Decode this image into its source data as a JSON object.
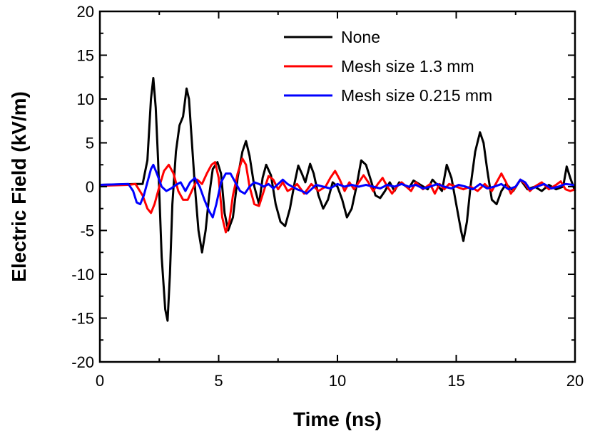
{
  "chart_data": {
    "type": "line",
    "xlabel": "Time (ns)",
    "ylabel": "Electric Field (kV/m)",
    "xlim": [
      0,
      20
    ],
    "ylim": [
      -20,
      20
    ],
    "xticks": [
      0,
      5,
      10,
      15,
      20
    ],
    "yticks": [
      -20,
      -15,
      -10,
      -5,
      0,
      5,
      10,
      15,
      20
    ],
    "grid": false,
    "legend_position": "top-right",
    "series": [
      {
        "name": "None",
        "color": "#000000",
        "points": [
          [
            0,
            0.2
          ],
          [
            1.5,
            0.3
          ],
          [
            1.8,
            0.3
          ],
          [
            2.0,
            3
          ],
          [
            2.15,
            10
          ],
          [
            2.25,
            12.4
          ],
          [
            2.35,
            9
          ],
          [
            2.45,
            3
          ],
          [
            2.6,
            -8
          ],
          [
            2.75,
            -14
          ],
          [
            2.85,
            -15.3
          ],
          [
            2.95,
            -10
          ],
          [
            3.05,
            -2
          ],
          [
            3.2,
            4
          ],
          [
            3.35,
            7
          ],
          [
            3.5,
            8
          ],
          [
            3.65,
            11.2
          ],
          [
            3.75,
            10
          ],
          [
            3.85,
            6
          ],
          [
            4.0,
            0
          ],
          [
            4.15,
            -5
          ],
          [
            4.3,
            -7.5
          ],
          [
            4.45,
            -5
          ],
          [
            4.6,
            -1
          ],
          [
            4.75,
            2
          ],
          [
            4.95,
            2.8
          ],
          [
            5.1,
            1.5
          ],
          [
            5.25,
            -3
          ],
          [
            5.4,
            -5
          ],
          [
            5.6,
            -3.5
          ],
          [
            5.8,
            1
          ],
          [
            6.0,
            4
          ],
          [
            6.15,
            5.2
          ],
          [
            6.3,
            3.5
          ],
          [
            6.5,
            0
          ],
          [
            6.7,
            -2
          ],
          [
            6.85,
            1
          ],
          [
            7.0,
            2.5
          ],
          [
            7.2,
            1.3
          ],
          [
            7.4,
            -2
          ],
          [
            7.6,
            -4
          ],
          [
            7.8,
            -4.5
          ],
          [
            8.0,
            -2.5
          ],
          [
            8.2,
            0.5
          ],
          [
            8.35,
            2.4
          ],
          [
            8.5,
            1.5
          ],
          [
            8.65,
            0.5
          ],
          [
            8.85,
            2.6
          ],
          [
            9.0,
            1.5
          ],
          [
            9.2,
            -1
          ],
          [
            9.4,
            -2.5
          ],
          [
            9.6,
            -1.5
          ],
          [
            9.8,
            0.5
          ],
          [
            10.0,
            0
          ],
          [
            10.2,
            -1.5
          ],
          [
            10.4,
            -3.5
          ],
          [
            10.6,
            -2.5
          ],
          [
            10.8,
            0
          ],
          [
            11.0,
            3
          ],
          [
            11.2,
            2.5
          ],
          [
            11.4,
            0.8
          ],
          [
            11.6,
            -1
          ],
          [
            11.8,
            -1.3
          ],
          [
            12.0,
            -0.5
          ],
          [
            12.2,
            0.5
          ],
          [
            12.4,
            -0.5
          ],
          [
            12.6,
            0.5
          ],
          [
            12.8,
            0.2
          ],
          [
            13.0,
            -0.2
          ],
          [
            13.2,
            0.7
          ],
          [
            13.5,
            0.2
          ],
          [
            13.8,
            -0.3
          ],
          [
            14.0,
            0.8
          ],
          [
            14.2,
            0.2
          ],
          [
            14.4,
            -0.5
          ],
          [
            14.6,
            2.5
          ],
          [
            14.8,
            1
          ],
          [
            15.0,
            -2
          ],
          [
            15.2,
            -5
          ],
          [
            15.3,
            -6.2
          ],
          [
            15.45,
            -4
          ],
          [
            15.6,
            0
          ],
          [
            15.8,
            4
          ],
          [
            16.0,
            6.2
          ],
          [
            16.15,
            5
          ],
          [
            16.3,
            2
          ],
          [
            16.5,
            -1.5
          ],
          [
            16.7,
            -2
          ],
          [
            16.9,
            -0.5
          ],
          [
            17.1,
            0.3
          ],
          [
            17.4,
            -0.5
          ],
          [
            17.7,
            0.8
          ],
          [
            18.0,
            -0.3
          ],
          [
            18.3,
            0
          ],
          [
            18.6,
            -0.5
          ],
          [
            18.9,
            0.2
          ],
          [
            19.2,
            -0.3
          ],
          [
            19.5,
            0
          ],
          [
            19.65,
            2.3
          ],
          [
            19.8,
            1
          ],
          [
            20.0,
            -0.5
          ]
        ]
      },
      {
        "name": "Mesh size 1.3 mm",
        "color": "#ff0000",
        "points": [
          [
            0,
            0.1
          ],
          [
            1.2,
            0.2
          ],
          [
            1.5,
            0.3
          ],
          [
            1.8,
            -1
          ],
          [
            2.0,
            -2.5
          ],
          [
            2.15,
            -3
          ],
          [
            2.3,
            -2
          ],
          [
            2.5,
            0
          ],
          [
            2.7,
            1.8
          ],
          [
            2.9,
            2.5
          ],
          [
            3.1,
            1.5
          ],
          [
            3.3,
            -0.5
          ],
          [
            3.5,
            -1.5
          ],
          [
            3.7,
            -1.5
          ],
          [
            3.9,
            -0.3
          ],
          [
            4.1,
            0.8
          ],
          [
            4.3,
            0.3
          ],
          [
            4.5,
            1.5
          ],
          [
            4.7,
            2.5
          ],
          [
            4.85,
            2.8
          ],
          [
            5.0,
            1
          ],
          [
            5.15,
            -3.5
          ],
          [
            5.3,
            -5.2
          ],
          [
            5.45,
            -4
          ],
          [
            5.6,
            -1
          ],
          [
            5.8,
            1.5
          ],
          [
            6.0,
            3.2
          ],
          [
            6.15,
            2.5
          ],
          [
            6.3,
            0
          ],
          [
            6.5,
            -2
          ],
          [
            6.7,
            -2.2
          ],
          [
            6.9,
            -0.5
          ],
          [
            7.1,
            1.2
          ],
          [
            7.3,
            0.8
          ],
          [
            7.5,
            -0.3
          ],
          [
            7.7,
            0.5
          ],
          [
            7.9,
            -0.5
          ],
          [
            8.1,
            -0.2
          ],
          [
            8.3,
            0.3
          ],
          [
            8.6,
            -0.8
          ],
          [
            8.9,
            0.3
          ],
          [
            9.2,
            -0.5
          ],
          [
            9.5,
            0
          ],
          [
            9.7,
            1
          ],
          [
            9.9,
            1.8
          ],
          [
            10.1,
            0.8
          ],
          [
            10.3,
            -0.5
          ],
          [
            10.5,
            0.5
          ],
          [
            10.7,
            -0.3
          ],
          [
            10.9,
            0.5
          ],
          [
            11.1,
            1.3
          ],
          [
            11.3,
            0.5
          ],
          [
            11.5,
            -0.5
          ],
          [
            11.7,
            0.3
          ],
          [
            11.9,
            1
          ],
          [
            12.1,
            0
          ],
          [
            12.3,
            -0.8
          ],
          [
            12.5,
            0
          ],
          [
            12.7,
            0.5
          ],
          [
            12.9,
            0
          ],
          [
            13.1,
            -0.5
          ],
          [
            13.3,
            0.5
          ],
          [
            13.6,
            -0.3
          ],
          [
            13.9,
            0.3
          ],
          [
            14.1,
            -0.8
          ],
          [
            14.3,
            0.3
          ],
          [
            14.5,
            -0.3
          ],
          [
            14.7,
            0.3
          ],
          [
            15.0,
            0
          ],
          [
            15.3,
            -0.3
          ],
          [
            15.6,
            0
          ],
          [
            15.9,
            -0.5
          ],
          [
            16.2,
            0.3
          ],
          [
            16.5,
            -0.5
          ],
          [
            16.7,
            0.5
          ],
          [
            16.9,
            1.5
          ],
          [
            17.1,
            0.5
          ],
          [
            17.3,
            -0.8
          ],
          [
            17.5,
            0
          ],
          [
            17.7,
            0.8
          ],
          [
            17.9,
            0.3
          ],
          [
            18.1,
            -0.5
          ],
          [
            18.3,
            0
          ],
          [
            18.6,
            0.5
          ],
          [
            18.9,
            -0.3
          ],
          [
            19.2,
            0.2
          ],
          [
            19.4,
            0.6
          ],
          [
            19.6,
            -0.3
          ],
          [
            19.8,
            -0.5
          ],
          [
            20.0,
            -0.3
          ]
        ]
      },
      {
        "name": "Mesh size 0.215 mm",
        "color": "#0000ff",
        "points": [
          [
            0,
            0.2
          ],
          [
            1.2,
            0.3
          ],
          [
            1.4,
            -0.5
          ],
          [
            1.55,
            -1.8
          ],
          [
            1.7,
            -2
          ],
          [
            1.85,
            -1
          ],
          [
            2.0,
            0.5
          ],
          [
            2.15,
            2
          ],
          [
            2.25,
            2.5
          ],
          [
            2.4,
            1.5
          ],
          [
            2.6,
            0
          ],
          [
            2.8,
            -0.5
          ],
          [
            3.0,
            -0.2
          ],
          [
            3.2,
            0.2
          ],
          [
            3.4,
            0.5
          ],
          [
            3.6,
            -0.5
          ],
          [
            3.8,
            0.5
          ],
          [
            4.0,
            1
          ],
          [
            4.2,
            0
          ],
          [
            4.4,
            -1.5
          ],
          [
            4.6,
            -2.8
          ],
          [
            4.75,
            -3.5
          ],
          [
            4.9,
            -2
          ],
          [
            5.1,
            0.5
          ],
          [
            5.3,
            1.5
          ],
          [
            5.5,
            1.5
          ],
          [
            5.7,
            0.5
          ],
          [
            5.9,
            -0.5
          ],
          [
            6.1,
            -0.8
          ],
          [
            6.3,
            0
          ],
          [
            6.5,
            0.5
          ],
          [
            6.7,
            0.3
          ],
          [
            6.9,
            0
          ],
          [
            7.1,
            0.3
          ],
          [
            7.3,
            -0.2
          ],
          [
            7.5,
            0.3
          ],
          [
            7.7,
            0.8
          ],
          [
            7.9,
            0.3
          ],
          [
            8.1,
            0
          ],
          [
            8.3,
            -0.3
          ],
          [
            8.5,
            -0.5
          ],
          [
            8.7,
            -0.8
          ],
          [
            8.9,
            -0.3
          ],
          [
            9.1,
            0.2
          ],
          [
            9.4,
            0
          ],
          [
            9.7,
            -0.2
          ],
          [
            10.0,
            0.3
          ],
          [
            10.3,
            0
          ],
          [
            10.6,
            0.2
          ],
          [
            10.9,
            0
          ],
          [
            11.2,
            0.2
          ],
          [
            11.5,
            0
          ],
          [
            11.8,
            -0.2
          ],
          [
            12.1,
            0.2
          ],
          [
            12.4,
            0
          ],
          [
            12.7,
            0.3
          ],
          [
            13.0,
            0
          ],
          [
            13.3,
            0.2
          ],
          [
            13.6,
            -0.2
          ],
          [
            13.9,
            0
          ],
          [
            14.2,
            0.3
          ],
          [
            14.5,
            0
          ],
          [
            14.8,
            -0.2
          ],
          [
            15.1,
            0.2
          ],
          [
            15.4,
            0
          ],
          [
            15.7,
            -0.3
          ],
          [
            16.0,
            0.3
          ],
          [
            16.3,
            -0.2
          ],
          [
            16.6,
            0
          ],
          [
            16.9,
            0.3
          ],
          [
            17.2,
            -0.3
          ],
          [
            17.5,
            0
          ],
          [
            17.7,
            0.8
          ],
          [
            17.9,
            0.5
          ],
          [
            18.1,
            -0.3
          ],
          [
            18.4,
            0
          ],
          [
            18.7,
            0.3
          ],
          [
            19.0,
            -0.2
          ],
          [
            19.3,
            0
          ],
          [
            19.6,
            0.3
          ],
          [
            19.9,
            0.2
          ],
          [
            20.0,
            0.1
          ]
        ]
      }
    ]
  }
}
